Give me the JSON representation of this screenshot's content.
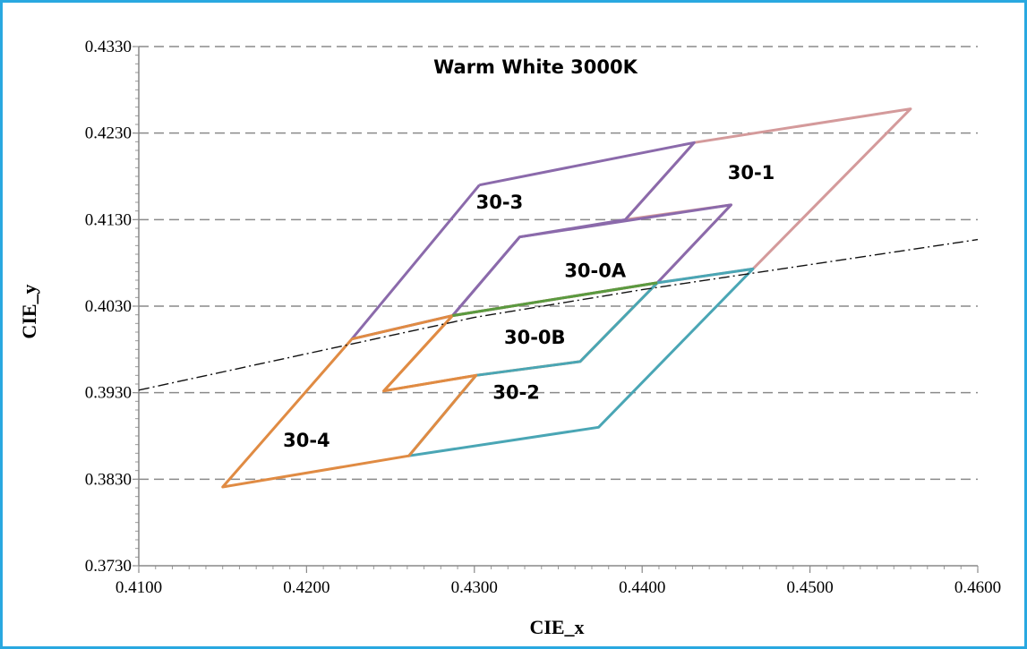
{
  "chart_data": {
    "type": "line",
    "title": "Warm White 3000K",
    "xlabel": "CIE_x",
    "ylabel": "CIE_y",
    "xlim": [
      0.41,
      0.46
    ],
    "ylim": [
      0.373,
      0.433
    ],
    "x_ticks": [
      "0.4100",
      "0.4200",
      "0.4300",
      "0.4400",
      "0.4500",
      "0.4600"
    ],
    "y_ticks": [
      "0.3730",
      "0.3830",
      "0.3930",
      "0.4030",
      "0.4130",
      "0.4230",
      "0.4330"
    ],
    "grid": "horizontal dashed",
    "series": [
      {
        "label": "30-1",
        "color": "#d49a9b",
        "label_at": [
          0.4465,
          0.4184
        ],
        "points": [
          [
            0.4431,
            0.4219
          ],
          [
            0.456,
            0.4258
          ],
          [
            0.4466,
            0.4073
          ],
          [
            0.4409,
            0.4057
          ],
          [
            0.4453,
            0.4147
          ],
          [
            0.439,
            0.413
          ],
          [
            0.4431,
            0.4219
          ]
        ]
      },
      {
        "label": "30-3",
        "color": "#8b6aab",
        "label_at": [
          0.4315,
          0.415
        ],
        "points": [
          [
            0.4303,
            0.417
          ],
          [
            0.4431,
            0.4219
          ],
          [
            0.439,
            0.413
          ],
          [
            0.4327,
            0.411
          ],
          [
            0.4287,
            0.4019
          ],
          [
            0.4227,
            0.3992
          ],
          [
            0.4303,
            0.417
          ]
        ]
      },
      {
        "label": "30-0A",
        "color": "#8b6aab",
        "label_at": [
          0.4372,
          0.4071
        ],
        "points": [
          [
            0.4327,
            0.411
          ],
          [
            0.4453,
            0.4147
          ],
          [
            0.4409,
            0.4057
          ],
          [
            0.4287,
            0.4019
          ],
          [
            0.4327,
            0.411
          ]
        ]
      },
      {
        "label": "30-0B",
        "color": "#e08b43",
        "label_at": [
          0.4336,
          0.3994
        ],
        "points": [
          [
            0.4287,
            0.4019
          ],
          [
            0.4409,
            0.4057
          ],
          [
            0.4363,
            0.3966
          ],
          [
            0.4301,
            0.395
          ],
          [
            0.4246,
            0.3932
          ],
          [
            0.4287,
            0.4019
          ]
        ]
      },
      {
        "label": "30-2",
        "color": "#4aa6b5",
        "label_at": [
          0.4325,
          0.393
        ],
        "points": [
          [
            0.4409,
            0.4057
          ],
          [
            0.4466,
            0.4073
          ],
          [
            0.4374,
            0.389
          ],
          [
            0.4261,
            0.3857
          ],
          [
            0.4301,
            0.395
          ],
          [
            0.4363,
            0.3966
          ],
          [
            0.4409,
            0.4057
          ]
        ]
      },
      {
        "label": "30-4",
        "color": "#e08b43",
        "label_at": [
          0.42,
          0.3875
        ],
        "points": [
          [
            0.4227,
            0.3992
          ],
          [
            0.4287,
            0.4019
          ],
          [
            0.4246,
            0.3932
          ],
          [
            0.4301,
            0.395
          ],
          [
            0.4261,
            0.3857
          ],
          [
            0.415,
            0.3821
          ],
          [
            0.4227,
            0.3992
          ]
        ]
      },
      {
        "label": "",
        "color": "#5a9a40",
        "points": [
          [
            0.4287,
            0.4019
          ],
          [
            0.4409,
            0.4057
          ]
        ]
      },
      {
        "label": "",
        "color": "#111111",
        "dash": "dash-dot",
        "points": [
          [
            0.41,
            0.3933
          ],
          [
            0.42,
            0.3975
          ],
          [
            0.43,
            0.4017
          ],
          [
            0.44,
            0.4049
          ],
          [
            0.45,
            0.4078
          ],
          [
            0.46,
            0.4107
          ]
        ]
      }
    ]
  }
}
